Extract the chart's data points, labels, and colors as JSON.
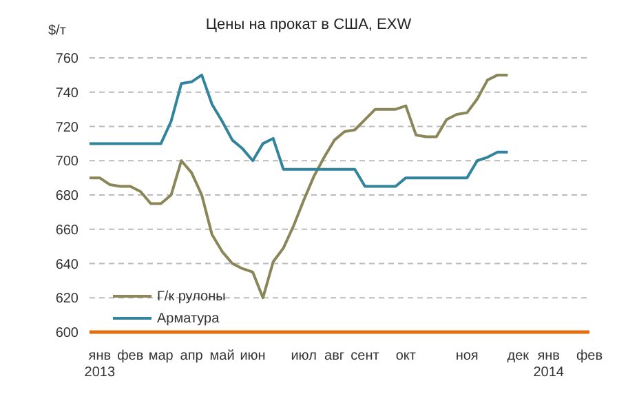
{
  "chart_data": {
    "type": "line",
    "title": "Цены на прокат в США, EXW",
    "ylabel": "$/т",
    "categories": [
      null,
      "янв\n2013",
      null,
      null,
      "фев",
      null,
      null,
      "мар",
      null,
      null,
      "апр",
      null,
      null,
      "май",
      null,
      null,
      "июн",
      null,
      null,
      null,
      null,
      "июл",
      null,
      null,
      "авг",
      null,
      null,
      "сент",
      null,
      null,
      null,
      "окт",
      null,
      null,
      null,
      null,
      null,
      "ноя",
      null,
      null,
      null,
      null,
      "дек",
      null,
      null,
      "янв\n2014",
      null,
      null,
      null,
      "фев"
    ],
    "ylim": [
      600,
      760
    ],
    "yticks": [
      600,
      620,
      640,
      660,
      680,
      700,
      720,
      740,
      760
    ],
    "grid": "y",
    "legend": "bottom left",
    "marker": "none",
    "line_style": "solid",
    "series": [
      {
        "name": "Г/к рулоны",
        "color": "#8b8659",
        "values": [
          690,
          690,
          686,
          685,
          685,
          682,
          675,
          675,
          680,
          700,
          693,
          680,
          657,
          647,
          640,
          637,
          635,
          620,
          641,
          649,
          662,
          677,
          691,
          702,
          712,
          717,
          718,
          724,
          730,
          730,
          730,
          732,
          715,
          714,
          714,
          724,
          727,
          728,
          736,
          747,
          750,
          750,
          null,
          null,
          null,
          null,
          null,
          null,
          null,
          null
        ]
      },
      {
        "name": "Арматура",
        "color": "#31849b",
        "values": [
          710,
          710,
          710,
          710,
          710,
          710,
          710,
          710,
          723,
          745,
          746,
          750,
          733,
          723,
          712,
          707,
          700,
          710,
          713,
          695,
          695,
          695,
          695,
          695,
          695,
          695,
          695,
          685,
          685,
          685,
          685,
          690,
          690,
          690,
          690,
          690,
          690,
          690,
          700,
          702,
          705,
          705,
          null,
          null,
          null,
          null,
          null,
          null,
          null,
          null
        ]
      }
    ]
  }
}
